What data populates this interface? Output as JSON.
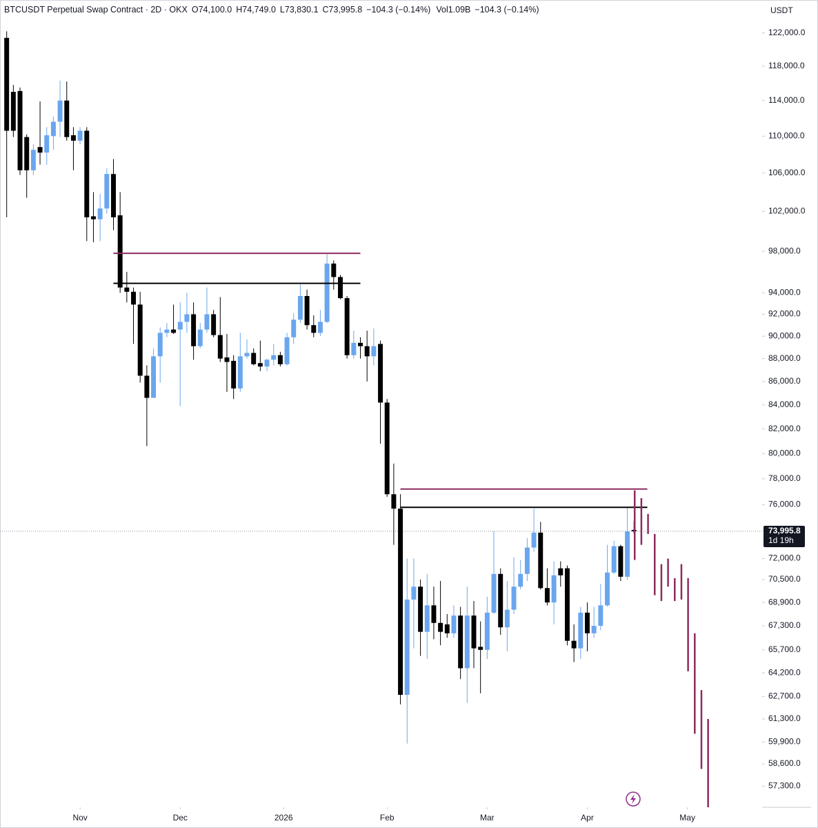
{
  "chart_data": {
    "type": "candlestick",
    "title": "BTCUSDT Perpetual Swap Contract · 2D · OKX",
    "ohlc_labels": [
      "O74,100.0",
      "H74,749.0",
      "L73,830.1",
      "C73,995.8"
    ],
    "change_label": "−104.3 (−0.14%)",
    "volume_label": "Vol1.09B",
    "volume_change_label": "−104.3 (−0.14%)",
    "currency": "USDT",
    "log_scale": true,
    "grid": false,
    "up_color": "#6aa6ee",
    "down_color": "#000000",
    "open": [
      121400,
      115000,
      115100,
      109900,
      106300,
      108800,
      108200,
      110000,
      111600,
      114000,
      110100,
      109500,
      110600,
      101500,
      101200,
      102300,
      105900,
      101600,
      94500,
      94100,
      92900,
      86500,
      84600,
      88200,
      90300,
      90600,
      90600,
      91300,
      92000,
      89100,
      90600,
      92000,
      90100,
      88100,
      87800,
      85400,
      88200,
      88500,
      87600,
      87300,
      87900,
      88300,
      87500,
      89900,
      91500,
      93700,
      91000,
      90300,
      91300,
      96800,
      95500,
      93500,
      88300,
      89400,
      89100,
      88200,
      89300,
      84200,
      76800,
      75700,
      62800,
      69100,
      70000,
      66900,
      68700,
      67500,
      67400,
      66800,
      68000,
      64500,
      68000,
      65900,
      65700,
      68200,
      70900,
      67200,
      68400,
      70000,
      70900,
      72800,
      73900,
      69900,
      68900,
      71300,
      71300,
      66300,
      65800,
      68200,
      66800,
      67300,
      68700,
      71000,
      72900,
      70700,
      74100
    ],
    "high": [
      122200,
      115800,
      115500,
      110200,
      109100,
      113900,
      111000,
      112200,
      116300,
      116200,
      111000,
      111000,
      111000,
      104000,
      103800,
      106500,
      107500,
      104000,
      96000,
      94500,
      94100,
      87400,
      88900,
      90800,
      91200,
      92900,
      93100,
      94000,
      93100,
      91200,
      94500,
      92400,
      93600,
      90200,
      88300,
      90300,
      89700,
      88900,
      89600,
      88000,
      89300,
      88600,
      90300,
      92100,
      94800,
      94300,
      91900,
      92400,
      97700,
      97100,
      95700,
      93700,
      90500,
      89900,
      90500,
      90700,
      89600,
      84500,
      79200,
      76800,
      72000,
      72000,
      70500,
      70900,
      70000,
      70400,
      68100,
      68700,
      68600,
      70000,
      69000,
      67600,
      69300,
      74000,
      71300,
      70400,
      72100,
      71900,
      73500,
      75700,
      74700,
      71300,
      71800,
      71800,
      71500,
      67400,
      68600,
      68900,
      68600,
      70200,
      73000,
      73300,
      73000,
      75800,
      74749
    ],
    "low": [
      101400,
      109900,
      105800,
      103400,
      105800,
      106900,
      106900,
      108500,
      109900,
      109500,
      106300,
      109100,
      99000,
      98900,
      99000,
      101800,
      100100,
      94000,
      93100,
      89300,
      85900,
      80600,
      84600,
      85900,
      89900,
      90200,
      83900,
      90300,
      87900,
      88900,
      90300,
      89900,
      87700,
      85100,
      84500,
      85100,
      88000,
      87400,
      86900,
      86900,
      87400,
      87300,
      87400,
      89300,
      91200,
      90600,
      89900,
      90000,
      91200,
      94300,
      93400,
      88000,
      88000,
      88000,
      86000,
      87400,
      80800,
      76600,
      73000,
      62200,
      59800,
      65800,
      65300,
      65100,
      66400,
      66000,
      66500,
      66500,
      63800,
      62300,
      64500,
      62900,
      65100,
      68100,
      66700,
      65600,
      68100,
      69800,
      70400,
      72500,
      69800,
      68700,
      67400,
      70000,
      66000,
      64900,
      65100,
      65600,
      66500,
      67000,
      68600,
      70900,
      70400,
      70500,
      73830.1
    ],
    "close": [
      110600,
      110600,
      106300,
      106300,
      108500,
      108200,
      110100,
      111600,
      114000,
      109900,
      109500,
      110600,
      101400,
      101200,
      102300,
      105900,
      101400,
      94500,
      94100,
      92900,
      86500,
      84600,
      88200,
      90300,
      90600,
      90300,
      91300,
      92000,
      89100,
      90600,
      92000,
      90100,
      88000,
      87700,
      85400,
      88200,
      88500,
      87500,
      87300,
      87900,
      88300,
      87500,
      89900,
      91500,
      93700,
      91000,
      90300,
      91300,
      96800,
      95500,
      93500,
      88300,
      89400,
      89100,
      88200,
      89100,
      84200,
      76800,
      75700,
      62800,
      69100,
      70000,
      66900,
      68700,
      67500,
      66900,
      66800,
      68000,
      64500,
      68000,
      65800,
      65700,
      68200,
      70900,
      67200,
      68400,
      70000,
      70900,
      72800,
      73900,
      69900,
      68900,
      70800,
      70800,
      66300,
      65800,
      68200,
      66800,
      67300,
      68700,
      71000,
      72900,
      70700,
      74000,
      73995.8
    ],
    "xlim": [
      -1,
      113.2
    ],
    "xticks": [
      {
        "value": 11,
        "label": "Nov"
      },
      {
        "value": 26,
        "label": "Dec"
      },
      {
        "value": 41.5,
        "label": "2026"
      },
      {
        "value": 57,
        "label": "Feb"
      },
      {
        "value": 72,
        "label": "Mar"
      },
      {
        "value": 87,
        "label": "Apr"
      },
      {
        "value": 102,
        "label": "May"
      }
    ],
    "ylim": [
      56100,
      126100
    ],
    "yticks": [
      {
        "value": 122000,
        "label": "122,000.0"
      },
      {
        "value": 118000,
        "label": "118,000.0"
      },
      {
        "value": 114000,
        "label": "114,000.0"
      },
      {
        "value": 110000,
        "label": "110,000.0"
      },
      {
        "value": 106000,
        "label": "106,000.0"
      },
      {
        "value": 102000,
        "label": "102,000.0"
      },
      {
        "value": 98000,
        "label": "98,000.0"
      },
      {
        "value": 94000,
        "label": "94,000.0"
      },
      {
        "value": 92000,
        "label": "92,000.0"
      },
      {
        "value": 90000,
        "label": "90,000.0"
      },
      {
        "value": 88000,
        "label": "88,000.0"
      },
      {
        "value": 86000,
        "label": "86,000.0"
      },
      {
        "value": 84000,
        "label": "84,000.0"
      },
      {
        "value": 82000,
        "label": "82,000.0"
      },
      {
        "value": 80000,
        "label": "80,000.0"
      },
      {
        "value": 78000,
        "label": "78,000.0"
      },
      {
        "value": 76000,
        "label": "76,000.0"
      },
      {
        "value": 72000,
        "label": "72,000.0"
      },
      {
        "value": 70500,
        "label": "70,500.0"
      },
      {
        "value": 68900,
        "label": "68,900.0"
      },
      {
        "value": 67300,
        "label": "67,300.0"
      },
      {
        "value": 65700,
        "label": "65,700.0"
      },
      {
        "value": 64200,
        "label": "64,200.0"
      },
      {
        "value": 62700,
        "label": "62,700.0"
      },
      {
        "value": 61300,
        "label": "61,300.0"
      },
      {
        "value": 59900,
        "label": "59,900.0"
      },
      {
        "value": 58600,
        "label": "58,600.0"
      },
      {
        "value": 57300,
        "label": "57,300.0"
      }
    ],
    "last_price": {
      "value": 73995.8,
      "label": "73,995.8"
    },
    "countdown": "1d 19h",
    "levels": [
      {
        "value": 97800,
        "color": "#8e2a5e",
        "start": 16,
        "end": 53
      },
      {
        "value": 94900,
        "color": "#000000",
        "start": 16,
        "end": 53
      },
      {
        "value": 77200,
        "color": "#8e2a5e",
        "start": 59,
        "end": 96
      },
      {
        "value": 75800,
        "color": "#000000",
        "start": 59,
        "end": 96
      }
    ],
    "projection": {
      "color": "#8e2a5e",
      "start": 94,
      "highs": [
        77100,
        76500,
        75300,
        73800,
        71600,
        72000,
        70600,
        71600,
        70600,
        66800,
        63100,
        61300
      ],
      "lows": [
        71900,
        73000,
        73800,
        69400,
        69000,
        70000,
        69000,
        69100,
        64300,
        60400,
        58300,
        56100
      ]
    }
  }
}
